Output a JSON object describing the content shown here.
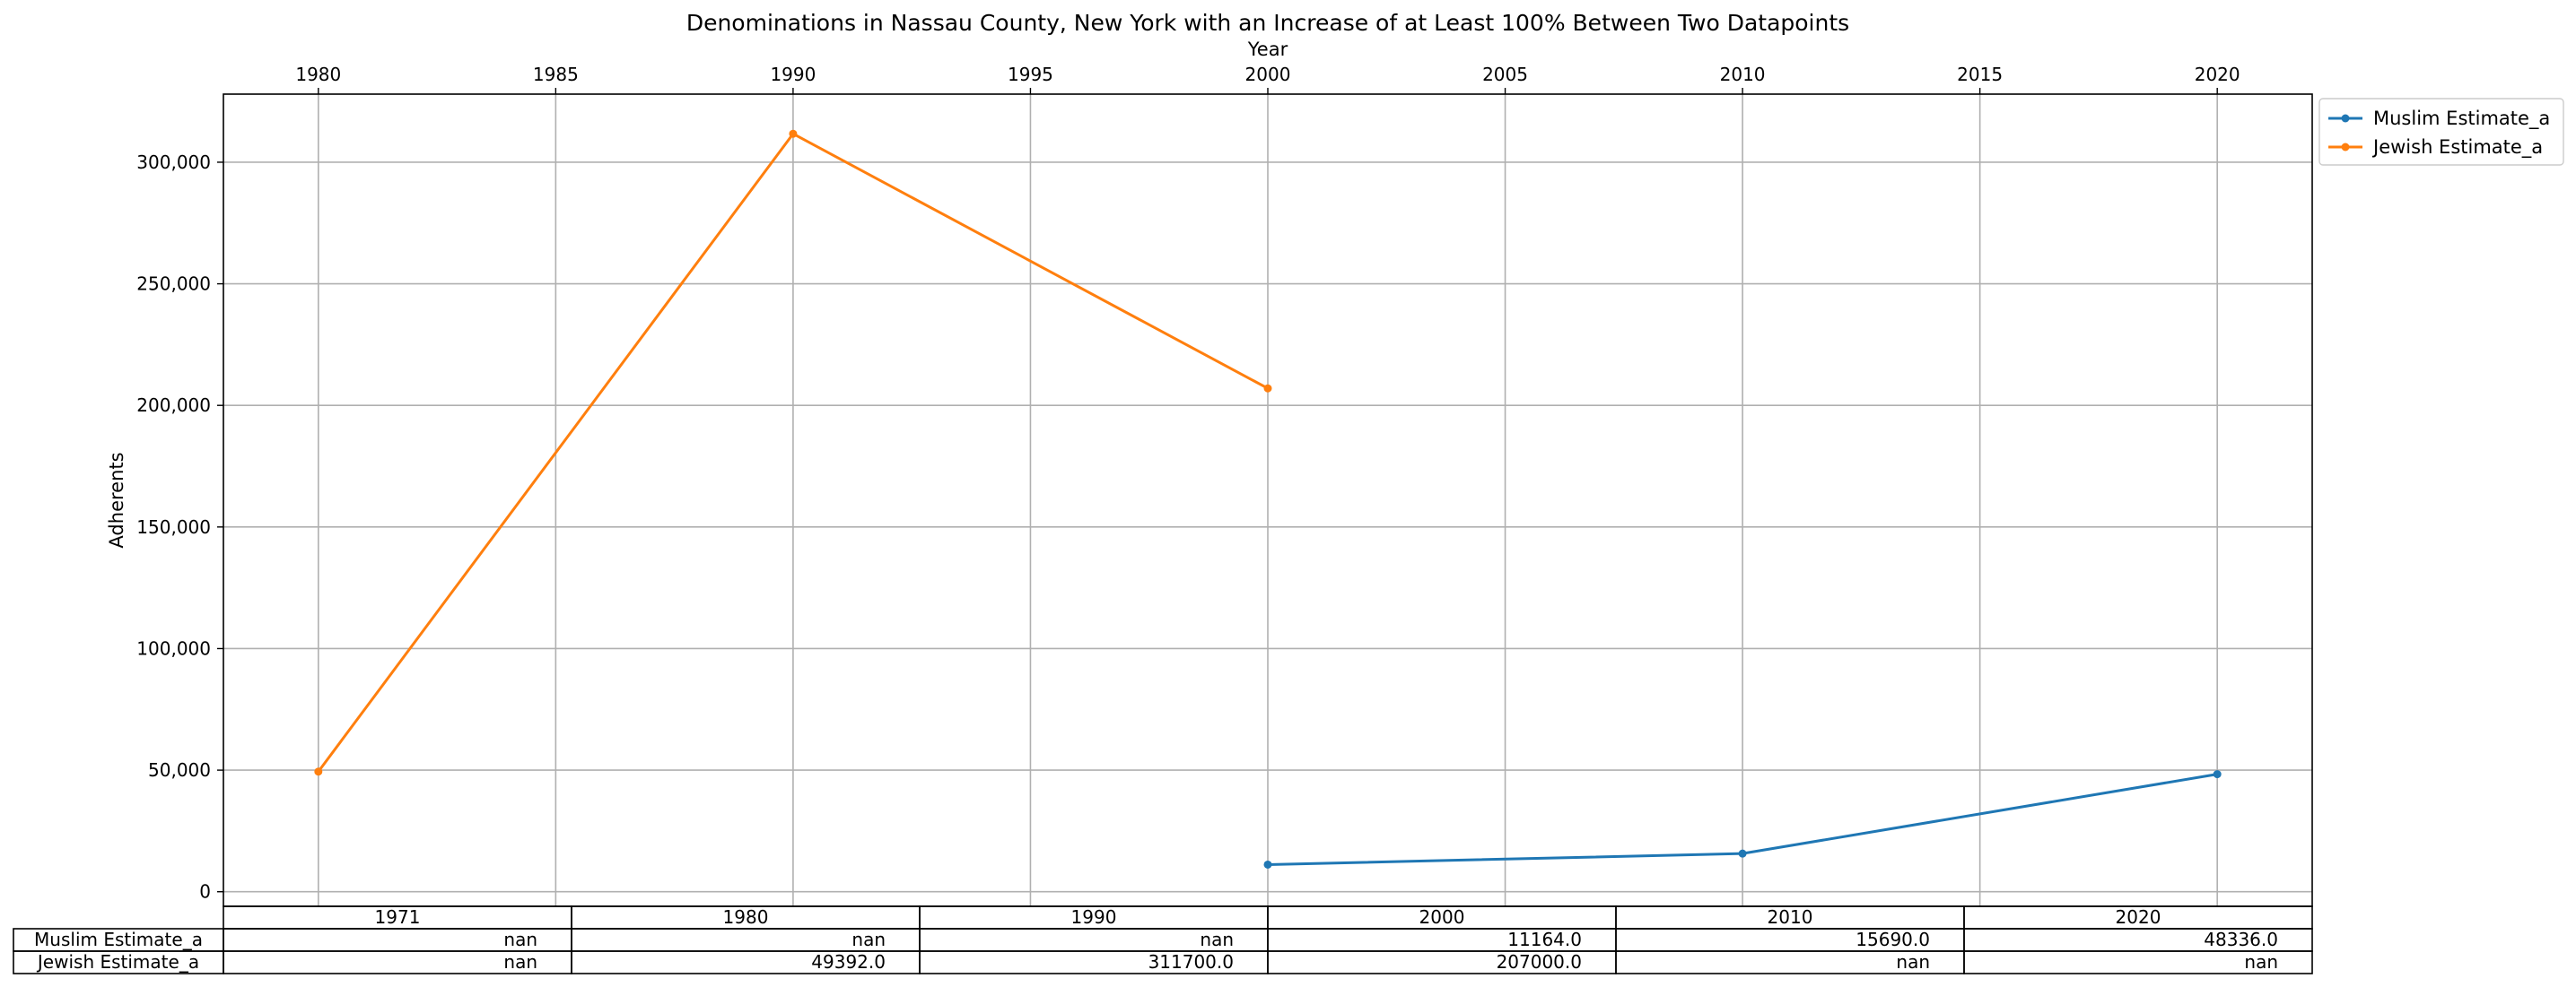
{
  "chart_data": {
    "type": "line",
    "title": "Denominations in Nassau County, New York with an Increase of at Least 100% Between Two Datapoints",
    "xlabel": "Year",
    "ylabel": "Adherents",
    "xlim": [
      1978,
      2022
    ],
    "ylim": [
      -6000,
      328000
    ],
    "x_ticks": [
      1980,
      1985,
      1990,
      1995,
      2000,
      2005,
      2010,
      2015,
      2020
    ],
    "y_ticks": [
      0,
      50000,
      100000,
      150000,
      200000,
      250000,
      300000
    ],
    "y_tick_labels": [
      "0",
      "50,000",
      "100,000",
      "150,000",
      "200,000",
      "250,000",
      "300,000"
    ],
    "grid": true,
    "legend_position": "outside-top-right",
    "series": [
      {
        "name": "Muslim Estimate_a",
        "color": "#1f77b4",
        "x": [
          2000,
          2010,
          2020
        ],
        "y": [
          11164,
          15690,
          48336
        ]
      },
      {
        "name": "Jewish Estimate_a",
        "color": "#ff7f0e",
        "x": [
          1980,
          1990,
          2000
        ],
        "y": [
          49392,
          311700,
          207000
        ]
      }
    ],
    "table": {
      "columns": [
        "1971",
        "1980",
        "1990",
        "2000",
        "2010",
        "2020"
      ],
      "rows": [
        {
          "label": "Muslim Estimate_a",
          "values": [
            "nan",
            "nan",
            "nan",
            "11164.0",
            "15690.0",
            "48336.0"
          ]
        },
        {
          "label": "Jewish Estimate_a",
          "values": [
            "nan",
            "49392.0",
            "311700.0",
            "207000.0",
            "nan",
            "nan"
          ]
        }
      ]
    }
  }
}
